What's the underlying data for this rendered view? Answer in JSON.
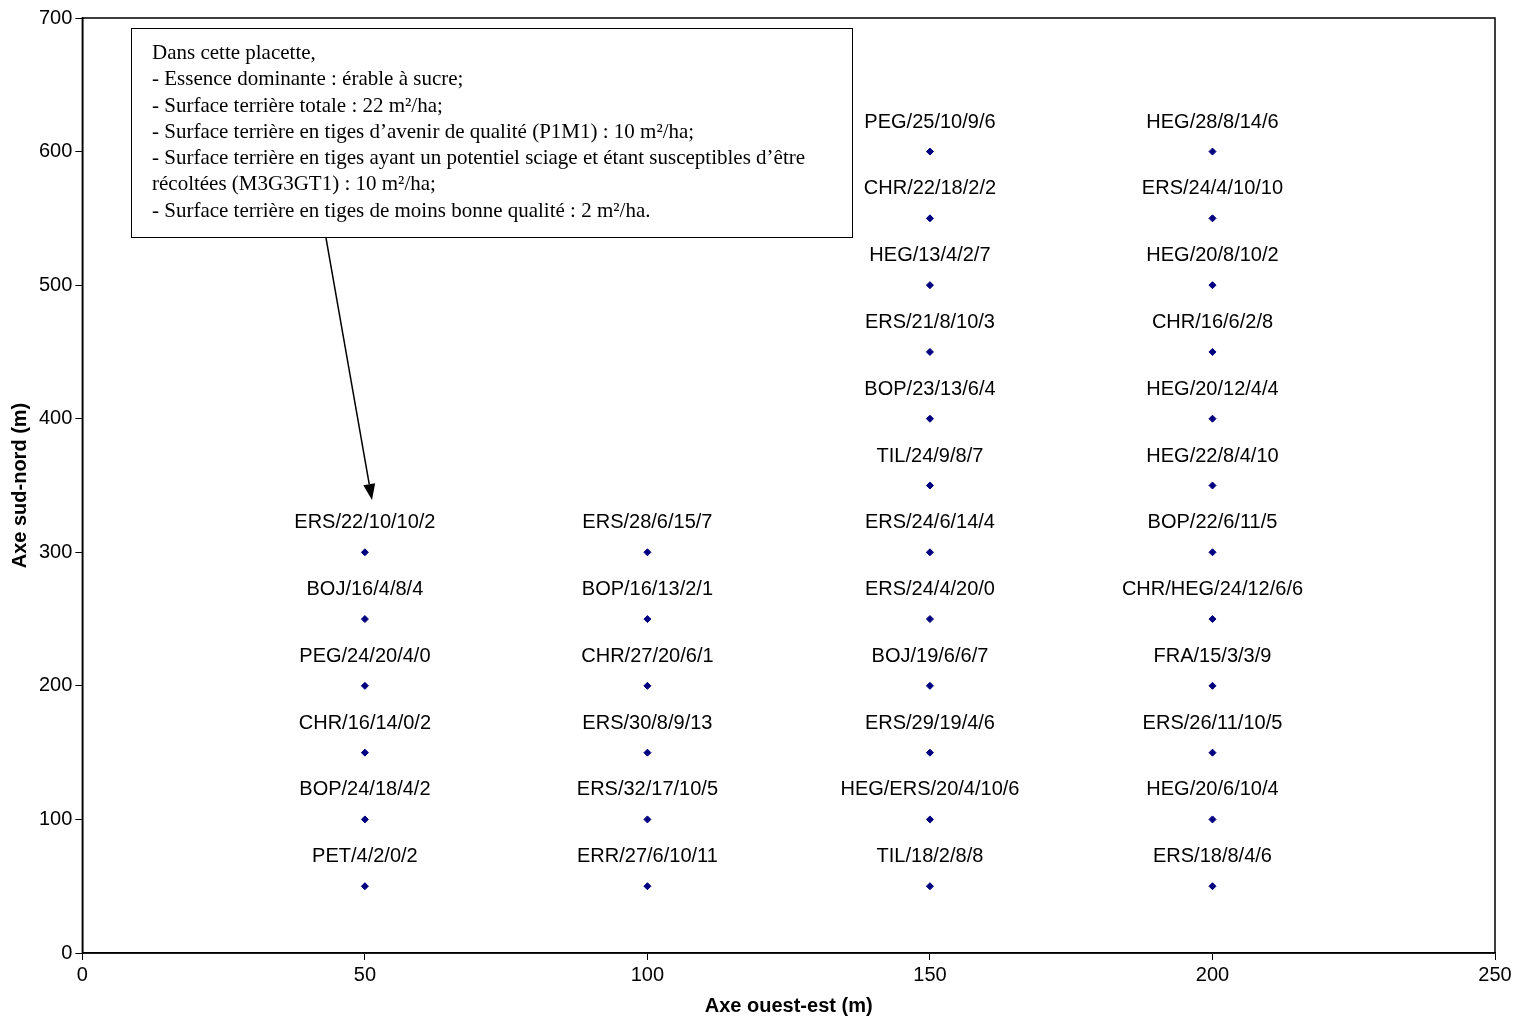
{
  "chart_data": {
    "type": "scatter",
    "xlabel": "Axe ouest-est (m)",
    "ylabel": "Axe sud-nord (m)",
    "xlim": [
      0,
      250
    ],
    "xticks": [
      0,
      50,
      100,
      150,
      200,
      250
    ],
    "ylim": [
      0,
      700
    ],
    "yticks": [
      0,
      100,
      200,
      300,
      400,
      500,
      600,
      700
    ],
    "grid": false,
    "legend": false,
    "marker": "diamond",
    "series": [
      {
        "color": "#000080",
        "x": [
          50,
          50,
          50,
          50,
          50,
          50
        ],
        "values": [
          50,
          100,
          150,
          200,
          250,
          300
        ],
        "value_labels": [
          "PET/4/2/0/2",
          "BOP/24/18/4/2",
          "CHR/16/14/0/2",
          "PEG/24/20/4/0",
          "BOJ/16/4/8/4",
          "ERS/22/10/10/2"
        ]
      },
      {
        "color": "#000080",
        "x": [
          100,
          100,
          100,
          100,
          100,
          100
        ],
        "values": [
          50,
          100,
          150,
          200,
          250,
          300
        ],
        "value_labels": [
          "ERR/27/6/10/11",
          "ERS/32/17/10/5",
          "ERS/30/8/9/13",
          "CHR/27/20/6/1",
          "BOP/16/13/2/1",
          "ERS/28/6/15/7"
        ]
      },
      {
        "color": "#000080",
        "x": [
          150,
          150,
          150,
          150,
          150,
          150,
          150,
          150,
          150,
          150,
          150,
          150
        ],
        "values": [
          50,
          100,
          150,
          200,
          250,
          300,
          350,
          400,
          450,
          500,
          550,
          600
        ],
        "value_labels": [
          "TIL/18/2/8/8",
          "HEG/ERS/20/4/10/6",
          "ERS/29/19/4/6",
          "BOJ/19/6/6/7",
          "ERS/24/4/20/0",
          "ERS/24/6/14/4",
          "TIL/24/9/8/7",
          "BOP/23/13/6/4",
          "ERS/21/8/10/3",
          "HEG/13/4/2/7",
          "CHR/22/18/2/2",
          "PEG/25/10/9/6"
        ]
      },
      {
        "color": "#000080",
        "x": [
          200,
          200,
          200,
          200,
          200,
          200,
          200,
          200,
          200,
          200,
          200,
          200
        ],
        "values": [
          50,
          100,
          150,
          200,
          250,
          300,
          350,
          400,
          450,
          500,
          550,
          600
        ],
        "value_labels": [
          "ERS/18/8/4/6",
          "HEG/20/6/10/4",
          "ERS/26/11/10/5",
          "FRA/15/3/3/9",
          "CHR/HEG/24/12/6/6",
          "BOP/22/6/11/5",
          "HEG/22/8/4/10",
          "HEG/20/12/4/4",
          "CHR/16/6/2/8",
          "HEG/20/8/10/2",
          "ERS/24/4/10/10",
          "HEG/28/8/14/6"
        ]
      }
    ],
    "annotations": [
      "Dans cette placette,\n- Essence dominante : érable à sucre;\n- Surface terrière totale : 22 m²/ha;\n- Surface terrière en tiges d’avenir de qualité (P1M1) : 10 m²/ha;\n- Surface terrière en tiges ayant un potentiel sciage et étant susceptibles d’être récoltées (M3G3GT1) : 10 m²/ha;\n- Surface terrière en tiges de moins bonne qualité : 2 m²/ha."
    ]
  }
}
